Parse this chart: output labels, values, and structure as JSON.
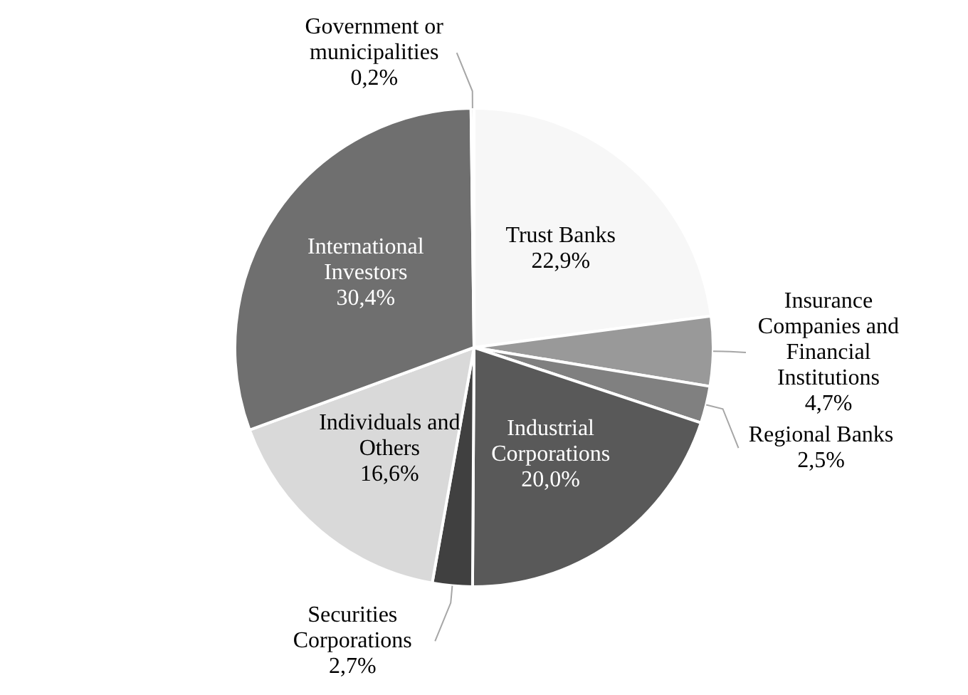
{
  "chart_data": {
    "type": "pie",
    "categories": [
      "Trust Banks",
      "Insurance Companies and Financial Institutions",
      "Regional Banks",
      "Industrial Corporations",
      "Securities Corporations",
      "Individuals and Others",
      "International Investors",
      "Government or municipalities"
    ],
    "values": [
      22.9,
      4.7,
      2.5,
      20.0,
      2.7,
      16.6,
      30.4,
      0.2
    ],
    "value_labels": [
      "22,9%",
      "4,7%",
      "2,5%",
      "20,0%",
      "2,7%",
      "16,6%",
      "30,4%",
      "0,2%"
    ],
    "colors": [
      "#f7f7f7",
      "#999999",
      "#808080",
      "#595959",
      "#404040",
      "#d9d9d9",
      "#6f6f6f",
      "#bfbfbf"
    ]
  }
}
